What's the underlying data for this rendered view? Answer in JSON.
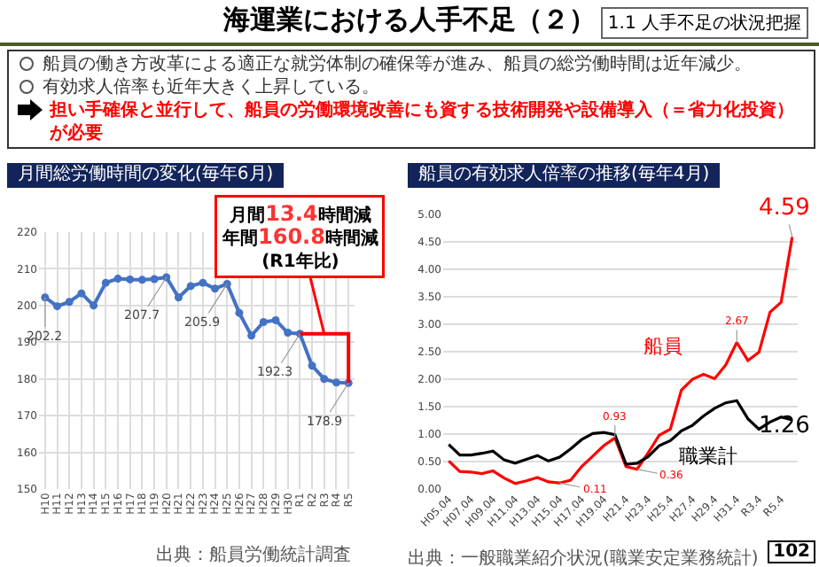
{
  "chart_data": [
    {
      "type": "other",
      "title": "海運業における人手不足（２）",
      "annotations": [
        "1.1 人手不足の状況把握",
        "船員の働き方改革による適正な就労体制の確保等が進み、船員の総労働時間は近年減少。",
        "有効求人倍率も近年大きく上昇している。",
        "担い手確保と並行して、船員の労働環境改善にも資する技術開発や設備導入（＝省力化投資）が必要",
        "102"
      ]
    },
    {
      "type": "line",
      "title": "月間総労働時間の変化(毎年6月)",
      "categories": [
        "H10",
        "H11",
        "H12",
        "H13",
        "H14",
        "H15",
        "H16",
        "H17",
        "H18",
        "H19",
        "H20",
        "H21",
        "H22",
        "H23",
        "H24",
        "H25",
        "H26",
        "H27",
        "H28",
        "H29",
        "H30",
        "R1",
        "R2",
        "R3",
        "R4",
        "R5"
      ],
      "series": [
        {
          "color": "#4472c4",
          "values": [
            202.2,
            199.8,
            201.0,
            203.3,
            200.0,
            206.2,
            207.3,
            207.1,
            207.0,
            207.2,
            207.7,
            202.2,
            205.3,
            206.2,
            204.6,
            205.9,
            198.0,
            191.8,
            195.5,
            196.0,
            192.6,
            192.3,
            183.6,
            180.0,
            179.0,
            178.9
          ],
          "value_labels": [
            "202.2",
            null,
            null,
            null,
            null,
            null,
            null,
            null,
            null,
            null,
            "207.7",
            null,
            null,
            null,
            null,
            "205.9",
            null,
            null,
            null,
            null,
            null,
            "192.3",
            null,
            null,
            null,
            "178.9"
          ]
        }
      ],
      "ylim": [
        150,
        220
      ],
      "yticks": [
        150,
        160,
        170,
        180,
        190,
        200,
        210,
        220
      ],
      "grid": true,
      "marker": "circle",
      "annotations": [
        "月間13.4時間減",
        "年間160.8時間減",
        "(R1年比)",
        "出典：船員労働統計調査"
      ]
    },
    {
      "type": "line",
      "title": "船員の有効求人倍率の推移(毎年4月)",
      "categories": [
        "H05.04",
        null,
        "H07.04",
        null,
        "H09.04",
        null,
        "H11.04",
        null,
        "H13.04",
        null,
        "H15.04",
        null,
        "H17.04",
        null,
        "H19.04",
        null,
        "H21.4",
        null,
        "H23.4",
        null,
        "H25.4",
        null,
        "H27.4",
        null,
        "H29.4",
        null,
        "H31.4",
        null,
        "R3.4",
        null,
        "R5.4",
        null
      ],
      "series": [
        {
          "name": "船員",
          "color": "#ff0000",
          "values": [
            0.51,
            0.32,
            0.31,
            0.28,
            0.33,
            0.2,
            0.1,
            0.15,
            0.21,
            0.13,
            0.11,
            0.16,
            0.41,
            0.6,
            0.79,
            0.93,
            0.41,
            0.36,
            0.66,
            0.98,
            1.09,
            1.8,
            2.0,
            2.09,
            2.01,
            2.26,
            2.67,
            2.34,
            2.49,
            3.22,
            3.4,
            4.59
          ],
          "value_labels": [
            null,
            null,
            null,
            null,
            null,
            null,
            null,
            null,
            null,
            null,
            "0.11",
            null,
            null,
            null,
            null,
            "0.93",
            null,
            "0.36",
            null,
            null,
            null,
            null,
            null,
            null,
            null,
            null,
            "2.67",
            null,
            null,
            null,
            null,
            "4.59"
          ]
        },
        {
          "name": "職業計",
          "color": "#000000",
          "values": [
            0.81,
            0.62,
            0.62,
            0.65,
            0.69,
            0.53,
            0.47,
            0.54,
            0.61,
            0.51,
            0.58,
            0.73,
            0.9,
            1.01,
            1.03,
            0.99,
            0.45,
            0.47,
            0.59,
            0.79,
            0.88,
            1.06,
            1.16,
            1.33,
            1.47,
            1.57,
            1.61,
            1.28,
            1.09,
            1.22,
            1.31,
            1.26
          ],
          "value_labels": [
            null,
            null,
            null,
            null,
            null,
            null,
            null,
            null,
            null,
            null,
            null,
            null,
            null,
            null,
            null,
            null,
            null,
            null,
            null,
            null,
            null,
            null,
            null,
            null,
            null,
            null,
            null,
            null,
            null,
            null,
            null,
            "1.26"
          ]
        }
      ],
      "ylim": [
        0,
        5
      ],
      "yticks": [
        {
          "value": 0,
          "label": "0.00"
        },
        {
          "value": 0.5,
          "label": "0.50"
        },
        {
          "value": 1,
          "label": "1.00"
        },
        {
          "value": 1.5,
          "label": "1.50"
        },
        {
          "value": 2,
          "label": "2.00"
        },
        {
          "value": 2.5,
          "label": "2.50"
        },
        {
          "value": 3,
          "label": "3.00"
        },
        {
          "value": 3.5,
          "label": "3.50"
        },
        {
          "value": 4,
          "label": "4.00"
        },
        {
          "value": 4.5,
          "label": "4.50"
        },
        {
          "value": 5,
          "label": "5.00"
        }
      ],
      "grid": "y",
      "marker": "none",
      "annotations": [
        "出典：一般職業紹介状況(職業安定業務統計)"
      ]
    }
  ]
}
